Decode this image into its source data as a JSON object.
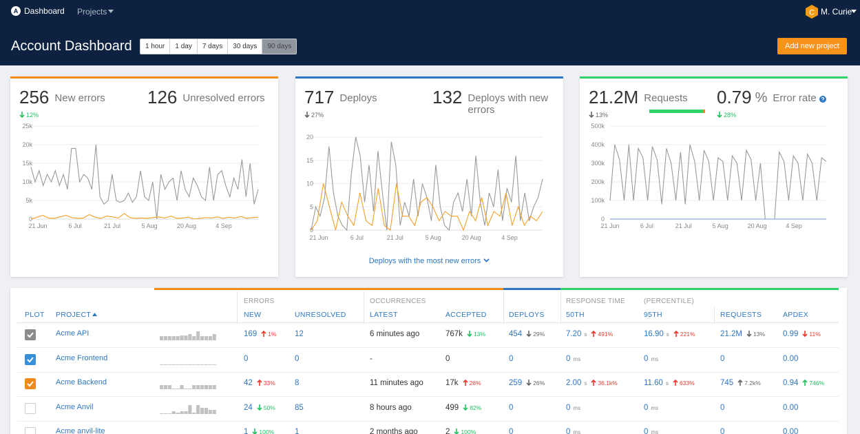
{
  "nav": {
    "logo": "A",
    "brand": "Dashboard",
    "projects": "Projects",
    "user_initial": "C",
    "user": "M. Curie"
  },
  "header": {
    "title": "Account Dashboard",
    "ranges": [
      "1 hour",
      "1 day",
      "7 days",
      "30 days",
      "90 days"
    ],
    "active_range": 4,
    "add_button": "Add new project"
  },
  "cards": [
    {
      "stats": [
        {
          "value": 256,
          "label": "New errors",
          "change": {
            "text": "12%",
            "dir": "down",
            "tone": "good"
          }
        },
        {
          "value": 126,
          "label": "Unresolved errors"
        }
      ]
    },
    {
      "stats": [
        {
          "value": 717,
          "label": "Deploys",
          "change": {
            "text": "27%",
            "dir": "down",
            "tone": "neutral"
          }
        },
        {
          "value": 132,
          "label": "Deploys with new errors"
        }
      ],
      "link": "Deploys with the most new errors"
    },
    {
      "stats": [
        {
          "value": "21.2M",
          "label": "Requests",
          "change": {
            "text": "13%",
            "dir": "down",
            "tone": "neutral"
          }
        },
        {
          "value": 0.79,
          "unit": "%",
          "label": "Error rate",
          "change": {
            "text": "28%",
            "dir": "down",
            "tone": "good"
          }
        }
      ]
    }
  ],
  "chart_data": [
    {
      "type": "line",
      "ylim": [
        0,
        25000
      ],
      "yticks": [
        {
          "value": 0,
          "label": "0"
        },
        {
          "value": 5000,
          "label": "5k"
        },
        {
          "value": 10000,
          "label": "10k"
        },
        {
          "value": 15000,
          "label": "15k"
        },
        {
          "value": 20000,
          "label": "20k"
        },
        {
          "value": 25000,
          "label": "25k"
        }
      ],
      "xtick_labels": [
        "21 Jun",
        "6 Jul",
        "21 Jul",
        "5 Aug",
        "20 Aug",
        "4 Sep"
      ],
      "grid": true,
      "series": [
        {
          "color": "#9a9a9a",
          "values": [
            14000,
            10000,
            13000,
            9000,
            12000,
            10000,
            13000,
            9000,
            12000,
            8000,
            19000,
            19000,
            10000,
            12000,
            11000,
            8000,
            20000,
            6000,
            4000,
            5000,
            12000,
            5000,
            4500,
            5000,
            7000,
            4500,
            6000,
            13000,
            6000,
            5000,
            10000,
            0,
            12000,
            8000,
            10000,
            11000,
            5000,
            13000,
            8000,
            6000,
            11000,
            9000,
            6000,
            5000,
            14000,
            5000,
            12000,
            13000,
            9000,
            6000,
            11000,
            8000,
            16000,
            6000,
            15000,
            4000,
            8000
          ]
        },
        {
          "color": "#f5a02a",
          "values": [
            0,
            500,
            1000,
            300,
            200,
            600,
            1000,
            400,
            200,
            300,
            1200,
            500,
            200,
            800,
            600,
            300,
            1500,
            400,
            200,
            300,
            200,
            400,
            600,
            300,
            800,
            200,
            300,
            500,
            0,
            200,
            400,
            300,
            600,
            200,
            500,
            300,
            700,
            200,
            400,
            500
          ]
        }
      ]
    },
    {
      "type": "line",
      "ylim": [
        0,
        20
      ],
      "yticks": [
        0,
        5,
        10,
        15,
        20
      ],
      "xtick_labels": [
        "21 Jun",
        "6 Jul",
        "21 Jul",
        "5 Aug",
        "20 Aug",
        "4 Sep"
      ],
      "grid": true,
      "series": [
        {
          "color": "#9a9a9a",
          "values": [
            0,
            5,
            3,
            7,
            18,
            8,
            3,
            1,
            0,
            12,
            20,
            16,
            6,
            14,
            4,
            17,
            8,
            0,
            19,
            14,
            1,
            6,
            3,
            11,
            3,
            10,
            7,
            2,
            14,
            5,
            1,
            0,
            6,
            8,
            4,
            11,
            3,
            16,
            6,
            1,
            8,
            5,
            13,
            2,
            9,
            6,
            16,
            2,
            8,
            2,
            5,
            7,
            11
          ]
        },
        {
          "color": "#f5a02a",
          "values": [
            0,
            2,
            10,
            5,
            0,
            6,
            3,
            1,
            8,
            2,
            1,
            9,
            1,
            0,
            10,
            3,
            3,
            1,
            6,
            7,
            5,
            2,
            4,
            3,
            3,
            0,
            4,
            2,
            7,
            1,
            4,
            3,
            8,
            1,
            5,
            1,
            3,
            2,
            4
          ]
        }
      ]
    },
    {
      "type": "line",
      "ylim": [
        0,
        500000
      ],
      "yticks": [
        {
          "value": 0,
          "label": "0"
        },
        {
          "value": 100000,
          "label": "100k"
        },
        {
          "value": 200000,
          "label": "200k"
        },
        {
          "value": 300000,
          "label": "300k"
        },
        {
          "value": 400000,
          "label": "400k"
        },
        {
          "value": 500000,
          "label": "500k"
        }
      ],
      "xtick_labels": [
        "21 Jun",
        "6 Jul",
        "21 Jul",
        "5 Aug",
        "20 Aug",
        "4 Sep"
      ],
      "grid": true,
      "series": [
        {
          "color": "#9a9a9a",
          "values": [
            100000,
            400000,
            320000,
            100000,
            400000,
            100000,
            380000,
            330000,
            100000,
            390000,
            320000,
            80000,
            380000,
            300000,
            100000,
            360000,
            80000,
            400000,
            310000,
            100000,
            370000,
            310000,
            100000,
            330000,
            310000,
            100000,
            340000,
            300000,
            100000,
            370000,
            320000,
            100000,
            300000,
            0,
            0,
            0,
            360000,
            310000,
            100000,
            340000,
            300000,
            100000,
            350000,
            300000,
            100000,
            330000,
            310000
          ]
        },
        {
          "color": "#6b98d4",
          "values": [
            0,
            0
          ]
        }
      ]
    }
  ],
  "table": {
    "group_headers": [
      "ERRORS",
      "OCCURRENCES",
      "RESPONSE TIME",
      "(PERCENTILE)"
    ],
    "columns": [
      "PLOT",
      "PROJECT",
      "NEW",
      "UNRESOLVED",
      "LATEST",
      "ACCEPTED",
      "DEPLOYS",
      "50TH",
      "95TH",
      "REQUESTS",
      "APDEX"
    ],
    "sorted_column": 1,
    "rows": [
      {
        "plot": {
          "checked": true,
          "color": "#8c8c8c"
        },
        "project": "Acme API",
        "spark": [
          6,
          6,
          6,
          6,
          6,
          7,
          7,
          9,
          6,
          13,
          6,
          6,
          6,
          9
        ],
        "cells": [
          {
            "text": "169",
            "change": {
              "text": "1%",
              "dir": "up",
              "tone": "bad"
            }
          },
          {
            "text": "12"
          },
          {
            "text": "6 minutes ago"
          },
          {
            "text": "767k",
            "change": {
              "text": "13%",
              "dir": "down",
              "tone": "good"
            }
          },
          {
            "text": "454",
            "change": {
              "text": "29%",
              "dir": "down",
              "tone": "neutral"
            }
          },
          {
            "text": "7.20",
            "unit": "s",
            "change": {
              "text": "491%",
              "dir": "up",
              "tone": "bad"
            }
          },
          {
            "text": "16.90",
            "unit": "s",
            "change": {
              "text": "221%",
              "dir": "up",
              "tone": "bad"
            }
          },
          {
            "text": "21.2M",
            "change": {
              "text": "13%",
              "dir": "down",
              "tone": "neutral"
            }
          },
          {
            "text": "0.99",
            "change": {
              "text": "11%",
              "dir": "down",
              "tone": "bad"
            }
          }
        ]
      },
      {
        "plot": {
          "checked": true,
          "color": "#3a8fd9"
        },
        "project": "Acme Frontend",
        "spark": [
          1,
          1,
          1,
          1,
          1,
          1,
          1,
          1,
          1,
          1,
          1,
          1,
          1,
          1
        ],
        "cells": [
          {
            "text": "0"
          },
          {
            "text": "0"
          },
          {
            "text": "-"
          },
          {
            "text": "0"
          },
          {
            "text": "0"
          },
          {
            "text": "0",
            "unit": "ms"
          },
          {
            "text": "0",
            "unit": "ms"
          },
          {
            "text": "0"
          },
          {
            "text": "0.00"
          }
        ]
      },
      {
        "plot": {
          "checked": true,
          "color": "#f0891b"
        },
        "project": "Acme Backend",
        "spark": [
          6,
          6,
          6,
          1,
          1,
          6,
          1,
          1,
          6,
          6,
          6,
          6,
          6,
          6
        ],
        "cells": [
          {
            "text": "42",
            "change": {
              "text": "33%",
              "dir": "up",
              "tone": "bad"
            }
          },
          {
            "text": "8"
          },
          {
            "text": "11 minutes ago"
          },
          {
            "text": "17k",
            "change": {
              "text": "26%",
              "dir": "up",
              "tone": "bad"
            }
          },
          {
            "text": "259",
            "change": {
              "text": "26%",
              "dir": "down",
              "tone": "neutral"
            }
          },
          {
            "text": "2.00",
            "unit": "s",
            "change": {
              "text": "36.1k%",
              "dir": "up",
              "tone": "bad"
            }
          },
          {
            "text": "11.60",
            "unit": "s",
            "change": {
              "text": "633%",
              "dir": "up",
              "tone": "bad"
            }
          },
          {
            "text": "745",
            "change": {
              "text": "7.2k%",
              "dir": "up",
              "tone": "neutral"
            }
          },
          {
            "text": "0.94",
            "change": {
              "text": "746%",
              "dir": "up",
              "tone": "good"
            }
          }
        ]
      },
      {
        "plot": {
          "checked": false,
          "color": "#ffffff"
        },
        "project": "Acme Anvil",
        "spark": [
          1,
          1,
          1,
          4,
          2,
          4,
          4,
          13,
          2,
          13,
          9,
          9,
          6,
          6
        ],
        "cells": [
          {
            "text": "24",
            "change": {
              "text": "50%",
              "dir": "down",
              "tone": "good"
            }
          },
          {
            "text": "85"
          },
          {
            "text": "8 hours ago"
          },
          {
            "text": "499",
            "change": {
              "text": "82%",
              "dir": "down",
              "tone": "good"
            }
          },
          {
            "text": "0"
          },
          {
            "text": "0",
            "unit": "ms"
          },
          {
            "text": "0",
            "unit": "ms"
          },
          {
            "text": "0"
          },
          {
            "text": "0.00"
          }
        ]
      },
      {
        "plot": {
          "checked": false,
          "color": "#ffffff"
        },
        "project": "Acme anvil-lite",
        "spark": [
          1,
          1,
          1,
          1,
          1,
          1,
          1,
          1,
          1,
          1,
          1,
          1,
          1,
          1
        ],
        "cells": [
          {
            "text": "1",
            "change": {
              "text": "100%",
              "dir": "down",
              "tone": "good"
            }
          },
          {
            "text": "1"
          },
          {
            "text": "2 months ago"
          },
          {
            "text": "2",
            "change": {
              "text": "100%",
              "dir": "down",
              "tone": "good"
            }
          },
          {
            "text": "0"
          },
          {
            "text": "0",
            "unit": "ms"
          },
          {
            "text": "0",
            "unit": "ms"
          },
          {
            "text": "0"
          },
          {
            "text": "0.00"
          }
        ]
      }
    ]
  }
}
